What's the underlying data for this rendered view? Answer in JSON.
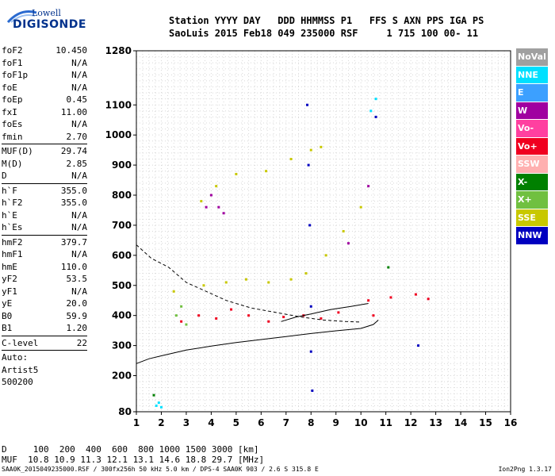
{
  "logo": {
    "top": "Lowell",
    "bottom": "DIGISONDE"
  },
  "header": {
    "line1": "Station YYYY DAY   DDD HHMMSS P1   FFS S AXN PPS IGA PS",
    "line2": "SaoLuis 2015 Feb18 049 235000 RSF     1 715 100 00- 11"
  },
  "params": [
    {
      "k": "foF2",
      "v": "10.450"
    },
    {
      "k": "foF1",
      "v": "N/A"
    },
    {
      "k": "foF1p",
      "v": "N/A"
    },
    {
      "k": "foE",
      "v": "N/A"
    },
    {
      "k": "foEp",
      "v": "0.45"
    },
    {
      "k": "fxI",
      "v": "11.00"
    },
    {
      "k": "foEs",
      "v": "N/A"
    },
    {
      "k": "fmin",
      "v": "2.70"
    },
    {
      "sep": true
    },
    {
      "k": "MUF(D)",
      "v": "29.74"
    },
    {
      "k": "M(D)",
      "v": "2.85"
    },
    {
      "k": "D",
      "v": "N/A"
    },
    {
      "sep": true
    },
    {
      "k": "h`F",
      "v": "355.0"
    },
    {
      "k": "h`F2",
      "v": "355.0"
    },
    {
      "k": "h`E",
      "v": "N/A"
    },
    {
      "k": "h`Es",
      "v": "N/A"
    },
    {
      "sep": true
    },
    {
      "k": "hmF2",
      "v": "379.7"
    },
    {
      "k": "hmF1",
      "v": "N/A"
    },
    {
      "k": "hmE",
      "v": "110.0"
    },
    {
      "k": "yF2",
      "v": "53.5"
    },
    {
      "k": "yF1",
      "v": "N/A"
    },
    {
      "k": "yE",
      "v": "20.0"
    },
    {
      "k": "B0",
      "v": "59.9"
    },
    {
      "k": "B1",
      "v": "1.20"
    },
    {
      "sep": true
    },
    {
      "k": "C-level",
      "v": "22"
    },
    {
      "sep": true
    }
  ],
  "auto": [
    "Auto:",
    "Artist5",
    "500200"
  ],
  "legend": [
    {
      "label": "NoVal",
      "color": "#a0a0a0"
    },
    {
      "label": "NNE",
      "color": "#00e0ff"
    },
    {
      "label": "E",
      "color": "#3ca0ff"
    },
    {
      "label": "W",
      "color": "#a000a0"
    },
    {
      "label": "Vo-",
      "color": "#ff40a0"
    },
    {
      "label": "Vo+",
      "color": "#f00020"
    },
    {
      "label": "SSW",
      "color": "#ffb0b0"
    },
    {
      "label": "X-",
      "color": "#008000"
    },
    {
      "label": "X+",
      "color": "#70c040"
    },
    {
      "label": "SSE",
      "color": "#c8c800"
    },
    {
      "label": "NNW",
      "color": "#0000c0"
    }
  ],
  "bottom": {
    "line1": "D     100  200  400  600  800 1000 1500 3000 [km]",
    "line2": "MUF  10.8 10.9 11.3 12.1 13.1 14.6 18.8 29.7 [MHz]"
  },
  "footer": "SAA0K_2015049235000.RSF / 300fx256h 50 kHz 5.0 km / DPS-4 SAA0K 903 / 2.6 S 315.8 E",
  "version": "Ion2Png 1.3.17",
  "chart_data": {
    "type": "scatter",
    "title": "",
    "xlabel": "",
    "ylabel": "",
    "xlim": [
      1,
      16
    ],
    "ylim": [
      80,
      1280
    ],
    "x_ticks": [
      1,
      2,
      3,
      4,
      5,
      6,
      7,
      8,
      9,
      10,
      11,
      12,
      13,
      14,
      15,
      16
    ],
    "y_ticks": [
      80,
      200,
      300,
      400,
      500,
      600,
      700,
      800,
      900,
      1000,
      1100,
      1280
    ],
    "y_minor": 20,
    "grid": true,
    "series": [
      {
        "name": "Vo+",
        "color": "#f00020",
        "pts": [
          [
            2.8,
            380
          ],
          [
            3.5,
            400
          ],
          [
            4.2,
            390
          ],
          [
            4.8,
            420
          ],
          [
            5.5,
            400
          ],
          [
            6.3,
            380
          ],
          [
            6.9,
            395
          ],
          [
            7.7,
            400
          ],
          [
            8.4,
            390
          ],
          [
            9.1,
            410
          ],
          [
            10.3,
            450
          ],
          [
            10.5,
            400
          ],
          [
            11.2,
            460
          ],
          [
            12.2,
            470
          ],
          [
            12.7,
            455
          ]
        ]
      },
      {
        "name": "SSE",
        "color": "#c8c800",
        "pts": [
          [
            2.5,
            480
          ],
          [
            3.7,
            500
          ],
          [
            4.6,
            510
          ],
          [
            5.4,
            520
          ],
          [
            6.3,
            510
          ],
          [
            7.2,
            520
          ],
          [
            7.8,
            540
          ],
          [
            8.6,
            600
          ],
          [
            9.3,
            680
          ],
          [
            10.0,
            760
          ],
          [
            3.6,
            780
          ],
          [
            4.2,
            830
          ],
          [
            5.0,
            870
          ],
          [
            6.2,
            880
          ],
          [
            7.2,
            920
          ],
          [
            8.0,
            950
          ],
          [
            8.4,
            960
          ]
        ]
      },
      {
        "name": "NNW",
        "color": "#0000c0",
        "pts": [
          [
            7.85,
            1100
          ],
          [
            7.9,
            900
          ],
          [
            7.95,
            700
          ],
          [
            8.0,
            430
          ],
          [
            8.0,
            280
          ],
          [
            8.05,
            150
          ],
          [
            10.6,
            1060
          ],
          [
            12.3,
            300
          ]
        ]
      },
      {
        "name": "W",
        "color": "#a000a0",
        "pts": [
          [
            3.8,
            760
          ],
          [
            4.0,
            800
          ],
          [
            4.3,
            760
          ],
          [
            4.5,
            740
          ],
          [
            9.5,
            640
          ],
          [
            10.3,
            830
          ]
        ]
      },
      {
        "name": "NNE",
        "color": "#00e0ff",
        "pts": [
          [
            1.8,
            100
          ],
          [
            1.9,
            110
          ],
          [
            2.0,
            95
          ],
          [
            10.4,
            1080
          ],
          [
            10.6,
            1120
          ]
        ]
      },
      {
        "name": "X+",
        "color": "#70c040",
        "pts": [
          [
            2.6,
            400
          ],
          [
            3.0,
            370
          ],
          [
            2.8,
            430
          ]
        ]
      },
      {
        "name": "X-",
        "color": "#008000",
        "pts": [
          [
            1.7,
            135
          ],
          [
            11.1,
            560
          ]
        ]
      }
    ],
    "profile_solid": [
      [
        1,
        240
      ],
      [
        1.5,
        256
      ],
      [
        2,
        266
      ],
      [
        3,
        285
      ],
      [
        4,
        298
      ],
      [
        5,
        310
      ],
      [
        6,
        320
      ],
      [
        7,
        330
      ],
      [
        8,
        340
      ],
      [
        9,
        349
      ],
      [
        10,
        357
      ],
      [
        10.5,
        370
      ],
      [
        10.7,
        385
      ]
    ],
    "profile_dashed": [
      [
        1,
        635
      ],
      [
        1.6,
        590
      ],
      [
        2.3,
        560
      ],
      [
        3,
        510
      ],
      [
        3.8,
        480
      ],
      [
        4.6,
        450
      ],
      [
        5.6,
        425
      ],
      [
        6.6,
        410
      ],
      [
        7.6,
        395
      ],
      [
        8.5,
        385
      ],
      [
        9.4,
        380
      ],
      [
        10.0,
        378
      ]
    ],
    "trace_line": [
      [
        6.8,
        380
      ],
      [
        7.4,
        395
      ],
      [
        8.0,
        405
      ],
      [
        8.8,
        420
      ],
      [
        9.6,
        430
      ],
      [
        10.3,
        440
      ]
    ]
  }
}
